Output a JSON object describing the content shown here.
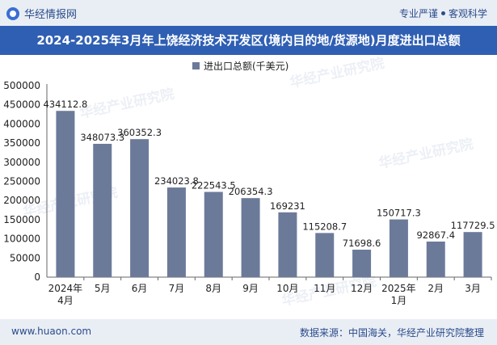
{
  "header": {
    "brand": "华经情报网",
    "tagline_left": "专业严谨",
    "tagline_right": "客观科学"
  },
  "title": "2024-2025年3月年上饶经济技术开发区(境内目的地/货源地)月度进出口总额",
  "footer": {
    "url": "www.huaon.com",
    "source": "数据来源：中国海关，华经产业研究院整理"
  },
  "watermark": "华经产业研究院",
  "colors": {
    "bar": "#6c7a9a",
    "header_bg": "#2f5fb3",
    "accent": "#2a4a8a"
  },
  "chart_data": {
    "type": "bar",
    "title": "2024-2025年3月年上饶经济技术开发区(境内目的地/货源地)月度进出口总额",
    "series": [
      {
        "name": "进出口总额(千美元)",
        "values": [
          434112.8,
          348073.3,
          360352.3,
          234023.8,
          222543.5,
          206354.3,
          169231,
          115208.7,
          71698.6,
          150717.3,
          92867.4,
          117729.5
        ],
        "labels": [
          "434112.8",
          "348073.3",
          "360352.3",
          "234023.8",
          "222543.5",
          "206354.3",
          "169231",
          "115208.7",
          "71698.6",
          "150717.3",
          "92867.4",
          "117729.5"
        ]
      }
    ],
    "categories": [
      [
        "2024年",
        "4月"
      ],
      [
        "5月"
      ],
      [
        "6月"
      ],
      [
        "7月"
      ],
      [
        "8月"
      ],
      [
        "9月"
      ],
      [
        "10月"
      ],
      [
        "11月"
      ],
      [
        "12月"
      ],
      [
        "2025年",
        "1月"
      ],
      [
        "2月"
      ],
      [
        "3月"
      ]
    ],
    "ylim": [
      0,
      500000
    ],
    "yticks": [
      0,
      50000,
      100000,
      150000,
      200000,
      250000,
      300000,
      350000,
      400000,
      450000,
      500000
    ],
    "legend_position": "top-center",
    "grid": false
  }
}
